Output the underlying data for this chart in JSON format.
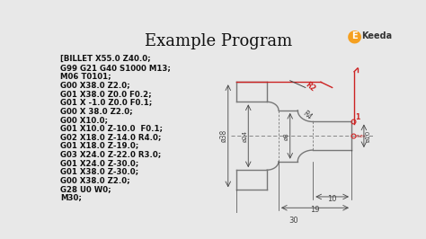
{
  "title": "Example Program",
  "title_fontsize": 13,
  "bg_color": "#e8e8e8",
  "code_lines": [
    "[BILLET X55.0 Z40.0;",
    "G99 G21 G40 S1000 M13;",
    "M06 T0101;",
    "G00 X38.0 Z2.0;",
    "G01 X38.0 Z0.0 F0.2;",
    "G01 X -1.0 Z0.0 F0.1;",
    "G00 X 38.0 Z2.0;",
    "G00 X10.0;",
    "G01 X10.0 Z-10.0  F0.1;",
    "G02 X18.0 Z-14.0 R4.0;",
    "G01 X18.0 Z-19.0;",
    "G03 X24.0 Z-22.0 R3.0;",
    "G01 X24.0 Z-30.0;",
    "G01 X38.0 Z-30.0;",
    "G00 X38.0 Z2.0;",
    "G28 U0 W0;",
    "M30;"
  ],
  "code_color": "#111111",
  "code_fontsize": 6.2,
  "drawing_color": "#777777",
  "red_color": "#cc2222",
  "dim_color": "#444444"
}
